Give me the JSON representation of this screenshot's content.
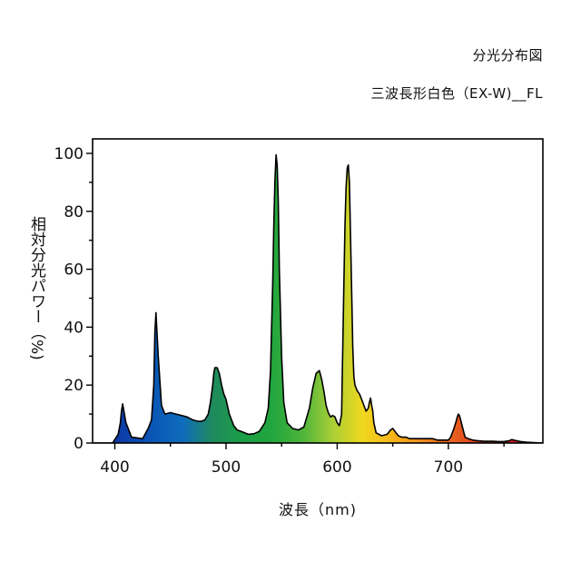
{
  "chart_data": {
    "type": "area",
    "title": "分光分布図",
    "subtitle": "三波長形白色（EX-W)__FL",
    "xlabel": "波長（nm)",
    "ylabel": "相対分光パワー（%)",
    "xlim": [
      380,
      785
    ],
    "ylim": [
      0,
      105
    ],
    "xticks": [
      400,
      500,
      600,
      700
    ],
    "yticks": [
      0,
      20,
      40,
      60,
      80,
      100
    ],
    "grid": false,
    "x": [
      380,
      398,
      403,
      405,
      406,
      407,
      410,
      415,
      425,
      430,
      433,
      435,
      436,
      437,
      439,
      442,
      445,
      450,
      455,
      460,
      465,
      470,
      475,
      478,
      481,
      484,
      486,
      488,
      489,
      490,
      492,
      494,
      496,
      498,
      500,
      503,
      507,
      510,
      515,
      520,
      525,
      530,
      535,
      538,
      540,
      542,
      543,
      544,
      545,
      546,
      547,
      548,
      550,
      552,
      555,
      560,
      565,
      570,
      575,
      578,
      581,
      584,
      586,
      588,
      590,
      592,
      594,
      596,
      598,
      600,
      602,
      604,
      606,
      607,
      608,
      609,
      610,
      611,
      612,
      613,
      614,
      615,
      616,
      618,
      620,
      622,
      624,
      626,
      628,
      629,
      630,
      631,
      632,
      633,
      635,
      640,
      645,
      648,
      650,
      652,
      655,
      658,
      662,
      665,
      668,
      672,
      678,
      682,
      686,
      690,
      695,
      700,
      702,
      705,
      707,
      708,
      709,
      710,
      711,
      713,
      715,
      718,
      722,
      726,
      732,
      740,
      745,
      750,
      755,
      757,
      760,
      765,
      770,
      775,
      785
    ],
    "y": [
      0,
      0,
      3,
      7,
      11,
      13.5,
      7,
      2,
      1.5,
      5,
      8,
      20,
      38,
      45,
      30,
      13,
      10,
      10.5,
      10,
      9.5,
      9,
      8,
      7.5,
      7.5,
      8,
      10,
      14,
      20,
      24,
      26,
      26,
      24,
      20,
      17,
      15,
      10,
      6,
      4.5,
      3.8,
      3,
      3.2,
      4,
      7,
      12,
      25,
      55,
      75,
      90,
      99.5,
      96,
      84,
      60,
      30,
      14,
      7,
      5,
      4.5,
      5.5,
      12,
      19,
      24,
      25,
      22,
      18,
      13,
      10.5,
      9,
      9.5,
      9,
      7,
      6,
      10,
      55,
      75,
      88,
      95,
      96,
      90,
      72,
      52,
      33,
      23,
      20,
      18,
      17,
      15,
      13,
      11,
      12,
      14,
      15.5,
      13,
      11,
      7,
      3.5,
      2.5,
      3,
      4.5,
      5,
      4,
      2.5,
      2,
      2,
      1.5,
      1.5,
      1.5,
      1.5,
      1.5,
      1.5,
      1,
      1,
      1,
      2,
      5,
      7.5,
      9,
      10,
      9.5,
      8,
      5,
      2,
      1.5,
      1,
      0.8,
      0.6,
      0.6,
      0.5,
      0.5,
      0.8,
      1.2,
      0.9,
      0.5,
      0.3,
      0.2,
      0
    ]
  },
  "colors": {
    "spectrum_stops": [
      "#1a2a9e",
      "#0d3fa8",
      "#0a56b5",
      "#0e6cbc",
      "#1f8a5c",
      "#1c9e48",
      "#22a63d",
      "#4eb43c",
      "#a9cf35",
      "#f0d81e",
      "#f5b41a",
      "#f08a1e",
      "#e8611f",
      "#e23a1f",
      "#dd1f1f",
      "#dd1f1f"
    ],
    "outline": "#000000"
  }
}
